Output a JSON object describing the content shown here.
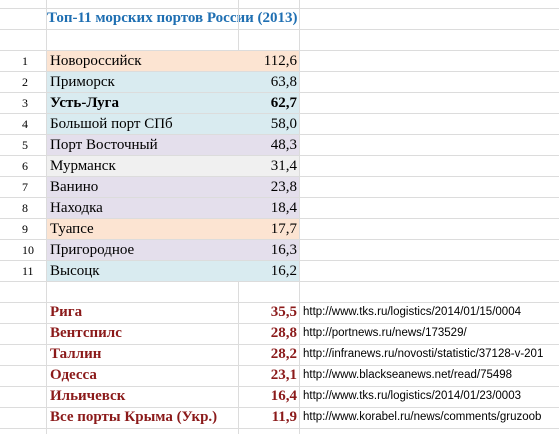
{
  "title": "Топ-11 морских портов России (2013)",
  "colors": {
    "title": "#1f6fb2",
    "foreign": "#8b1a1a",
    "peach": "#fce4d2",
    "blue": "#d9ebf0",
    "lavender": "#e4dfec",
    "gray": "#f0f0f0"
  },
  "ports": [
    {
      "rank": "1",
      "name": "Новороссийск",
      "value": "112,6",
      "bold": false,
      "bg": "peach"
    },
    {
      "rank": "2",
      "name": "Приморск",
      "value": "63,8",
      "bold": false,
      "bg": "blue"
    },
    {
      "rank": "3",
      "name": "Усть-Луга",
      "value": "62,7",
      "bold": true,
      "bg": "blue"
    },
    {
      "rank": "4",
      "name": "Большой порт СПб",
      "value": "58,0",
      "bold": false,
      "bg": "blue"
    },
    {
      "rank": "5",
      "name": "Порт Восточный",
      "value": "48,3",
      "bold": false,
      "bg": "lavender"
    },
    {
      "rank": "6",
      "name": "Мурманск",
      "value": "31,4",
      "bold": false,
      "bg": "gray"
    },
    {
      "rank": "7",
      "name": "Ванино",
      "value": "23,8",
      "bold": false,
      "bg": "lavender"
    },
    {
      "rank": "8",
      "name": "Находка",
      "value": "18,4",
      "bold": false,
      "bg": "lavender"
    },
    {
      "rank": "9",
      "name": "Туапсе",
      "value": "17,7",
      "bold": false,
      "bg": "peach"
    },
    {
      "rank": "10",
      "name": "Пригородное",
      "value": "16,3",
      "bold": false,
      "bg": "lavender"
    },
    {
      "rank": "11",
      "name": "Высоцк",
      "value": "16,2",
      "bold": false,
      "bg": "blue"
    }
  ],
  "foreign": [
    {
      "name": "Рига",
      "value": "35,5",
      "url": "http://www.tks.ru/logistics/2014/01/15/0004"
    },
    {
      "name": "Вентспилс",
      "value": "28,8",
      "url": "http://portnews.ru/news/173529/"
    },
    {
      "name": "Таллин",
      "value": "28,2",
      "url": "http://infranews.ru/novosti/statistic/37128-v-201"
    },
    {
      "name": "Одесса",
      "value": "23,1",
      "url": "http://www.blackseanews.net/read/75498"
    },
    {
      "name": "Ильичевск",
      "value": "16,4",
      "url": "http://www.tks.ru/logistics/2014/01/23/0003"
    },
    {
      "name": "Все порты Крыма (Укр.)",
      "value": "11,9",
      "url": "http://www.korabel.ru/news/comments/gruzoob"
    }
  ]
}
